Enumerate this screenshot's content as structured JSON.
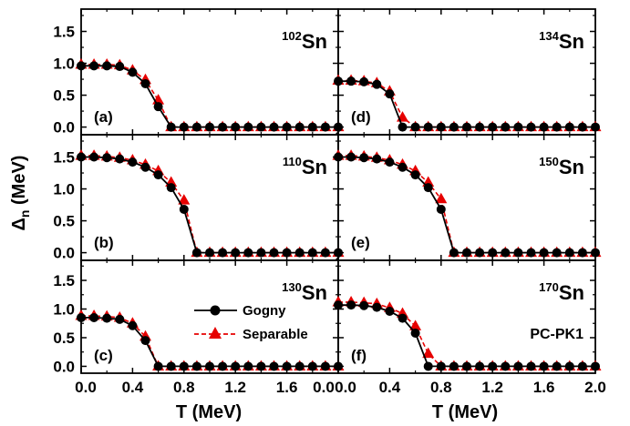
{
  "chart_data": {
    "type": "line",
    "ylabel": "Δn (MeV)",
    "xlabel": "T (MeV)",
    "x_ticks": [
      "0.0",
      "0.4",
      "0.8",
      "1.2",
      "1.6",
      "2.0"
    ],
    "x_ticks_left_col": [
      "0.0",
      "0.4",
      "0.8",
      "1.2",
      "1.6",
      "0.0"
    ],
    "y_ticks": [
      "0.0",
      "0.5",
      "1.0",
      "1.5"
    ],
    "xlim": [
      0,
      2.0
    ],
    "ylim": [
      -0.12,
      1.85
    ],
    "legend": {
      "position": "bottom-right of panel (c)",
      "entries": [
        {
          "name": "Gogny",
          "color": "#000000",
          "marker": "circle",
          "dash": "solid"
        },
        {
          "name": "Separable",
          "color": "#e60000",
          "marker": "triangle",
          "dash": "dashed"
        }
      ]
    },
    "annotation": "PC-PK1",
    "x": [
      0.0,
      0.1,
      0.2,
      0.3,
      0.4,
      0.5,
      0.6,
      0.7,
      0.8,
      0.9,
      1.0,
      1.1,
      1.2,
      1.3,
      1.4,
      1.5,
      1.6,
      1.7,
      1.8,
      1.9,
      2.0
    ],
    "panels": [
      {
        "label": "(a)",
        "mass": "102",
        "element": "Sn",
        "series": [
          {
            "name": "Gogny",
            "values": [
              0.96,
              0.96,
              0.96,
              0.95,
              0.86,
              0.68,
              0.32,
              0.0,
              0.0,
              0.0,
              0.0,
              0.0,
              0.0,
              0.0,
              0.0,
              0.0,
              0.0,
              0.0,
              0.0,
              0.0,
              0.0
            ]
          },
          {
            "name": "Separable",
            "values": [
              0.98,
              0.98,
              0.98,
              0.97,
              0.89,
              0.74,
              0.42,
              0.0,
              0.0,
              0.0,
              0.0,
              0.0,
              0.0,
              0.0,
              0.0,
              0.0,
              0.0,
              0.0,
              0.0,
              0.0,
              0.0
            ]
          }
        ]
      },
      {
        "label": "(d)",
        "mass": "134",
        "element": "Sn",
        "series": [
          {
            "name": "Gogny",
            "values": [
              0.72,
              0.72,
              0.71,
              0.67,
              0.52,
              0.0,
              0.0,
              0.0,
              0.0,
              0.0,
              0.0,
              0.0,
              0.0,
              0.0,
              0.0,
              0.0,
              0.0,
              0.0,
              0.0,
              0.0,
              0.0
            ]
          },
          {
            "name": "Separable",
            "values": [
              0.73,
              0.73,
              0.72,
              0.69,
              0.56,
              0.15,
              0.0,
              0.0,
              0.0,
              0.0,
              0.0,
              0.0,
              0.0,
              0.0,
              0.0,
              0.0,
              0.0,
              0.0,
              0.0,
              0.0,
              0.0
            ]
          }
        ]
      },
      {
        "label": "(b)",
        "mass": "110",
        "element": "Sn",
        "series": [
          {
            "name": "Gogny",
            "values": [
              1.5,
              1.5,
              1.49,
              1.47,
              1.42,
              1.34,
              1.22,
              1.02,
              0.68,
              0.0,
              0.0,
              0.0,
              0.0,
              0.0,
              0.0,
              0.0,
              0.0,
              0.0,
              0.0,
              0.0,
              0.0
            ]
          },
          {
            "name": "Separable",
            "values": [
              1.52,
              1.52,
              1.51,
              1.49,
              1.45,
              1.38,
              1.28,
              1.1,
              0.82,
              0.0,
              0.0,
              0.0,
              0.0,
              0.0,
              0.0,
              0.0,
              0.0,
              0.0,
              0.0,
              0.0,
              0.0
            ]
          }
        ]
      },
      {
        "label": "(e)",
        "mass": "150",
        "element": "Sn",
        "series": [
          {
            "name": "Gogny",
            "values": [
              1.5,
              1.5,
              1.49,
              1.47,
              1.42,
              1.34,
              1.22,
              1.02,
              0.68,
              0.0,
              0.0,
              0.0,
              0.0,
              0.0,
              0.0,
              0.0,
              0.0,
              0.0,
              0.0,
              0.0,
              0.0
            ]
          },
          {
            "name": "Separable",
            "values": [
              1.52,
              1.52,
              1.51,
              1.49,
              1.45,
              1.38,
              1.28,
              1.1,
              0.84,
              0.0,
              0.0,
              0.0,
              0.0,
              0.0,
              0.0,
              0.0,
              0.0,
              0.0,
              0.0,
              0.0,
              0.0
            ]
          }
        ]
      },
      {
        "label": "(c)",
        "mass": "130",
        "element": "Sn",
        "series": [
          {
            "name": "Gogny",
            "values": [
              0.85,
              0.85,
              0.84,
              0.82,
              0.71,
              0.45,
              0.0,
              0.0,
              0.0,
              0.0,
              0.0,
              0.0,
              0.0,
              0.0,
              0.0,
              0.0,
              0.0,
              0.0,
              0.0,
              0.0,
              0.0
            ]
          },
          {
            "name": "Separable",
            "values": [
              0.88,
              0.88,
              0.87,
              0.85,
              0.75,
              0.52,
              0.0,
              0.0,
              0.0,
              0.0,
              0.0,
              0.0,
              0.0,
              0.0,
              0.0,
              0.0,
              0.0,
              0.0,
              0.0,
              0.0,
              0.0
            ]
          }
        ]
      },
      {
        "label": "(f)",
        "mass": "170",
        "element": "Sn",
        "series": [
          {
            "name": "Gogny",
            "values": [
              1.07,
              1.07,
              1.06,
              1.03,
              0.96,
              0.84,
              0.58,
              0.0,
              0.0,
              0.0,
              0.0,
              0.0,
              0.0,
              0.0,
              0.0,
              0.0,
              0.0,
              0.0,
              0.0,
              0.0,
              0.0
            ]
          },
          {
            "name": "Separable",
            "values": [
              1.12,
              1.12,
              1.11,
              1.09,
              1.02,
              0.92,
              0.7,
              0.22,
              0.0,
              0.0,
              0.0,
              0.0,
              0.0,
              0.0,
              0.0,
              0.0,
              0.0,
              0.0,
              0.0,
              0.0,
              0.0
            ]
          }
        ]
      }
    ]
  }
}
